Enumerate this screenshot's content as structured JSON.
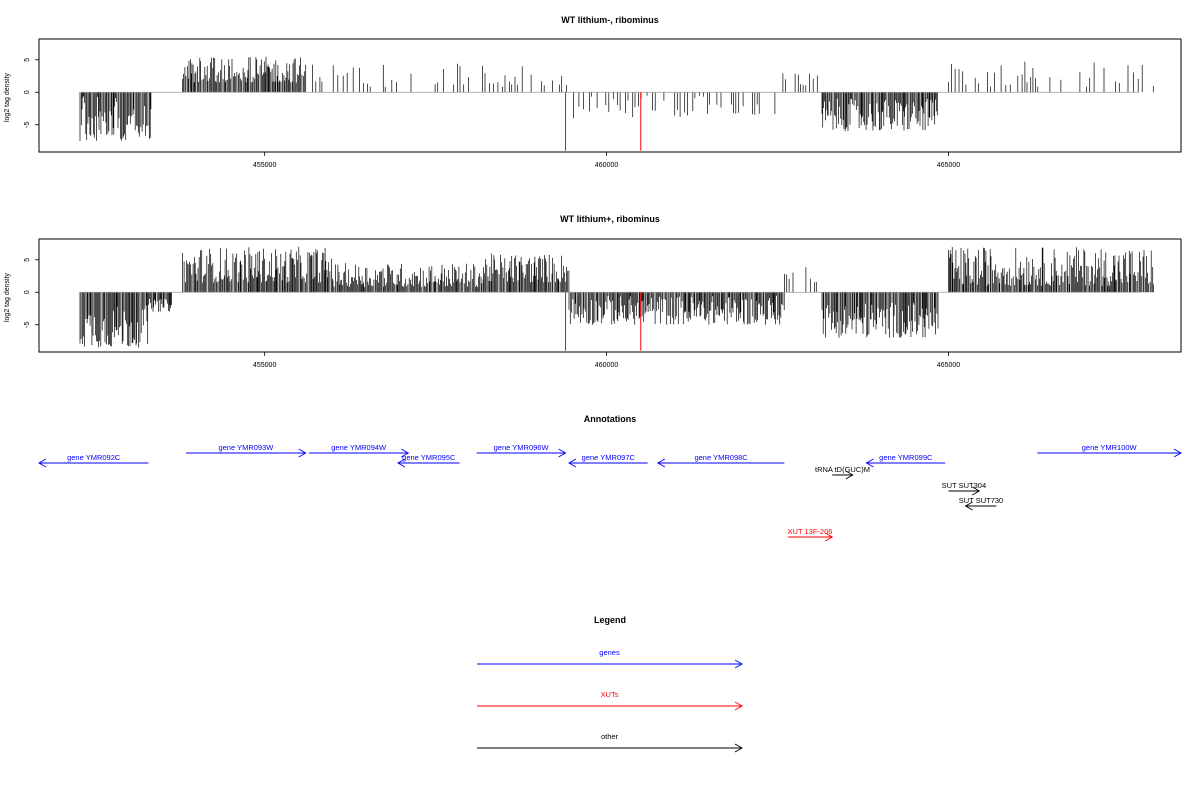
{
  "colors": {
    "gene": "#0000ff",
    "xut": "#ff0000",
    "other": "#000000",
    "frame": "#000000",
    "baseline": "#999999",
    "highlight": "#ff0000"
  },
  "chart_data": [
    {
      "type": "bar",
      "title": "WT lithium-, ribominus",
      "ylabel": "log2 tag density",
      "xlim": [
        451700,
        468400
      ],
      "ylim": [
        -9.2,
        8.2
      ],
      "xticks": [
        455000,
        460000,
        465000
      ],
      "yticks": [
        5,
        0,
        -5
      ],
      "grid": false,
      "series": [
        {
          "name": "",
          "values": [
            {
              "x_from": 452300,
              "x_to": 453350,
              "min": -7.5,
              "max": -0.3,
              "sign": -1
            },
            {
              "x_from": 453800,
              "x_to": 455600,
              "min": 1.5,
              "max": 5.5,
              "sign": 1
            },
            {
              "x_from": 455700,
              "x_to": 459450,
              "min": 0.8,
              "max": 4.5,
              "sign": 1,
              "sparse": true
            },
            {
              "x_from": 459450,
              "x_to": 462500,
              "min": -4.0,
              "max": -0.5,
              "sign": -1,
              "sparse": true
            },
            {
              "x_from": 462500,
              "x_to": 463100,
              "min": 0.8,
              "max": 3.0,
              "sign": 1,
              "sparse": true
            },
            {
              "x_from": 463150,
              "x_to": 464850,
              "min": -6.0,
              "max": -1.0,
              "sign": -1
            },
            {
              "x_from": 465000,
              "x_to": 468000,
              "min": 0.8,
              "max": 5.0,
              "sign": 1,
              "sparse": true
            }
          ]
        }
      ],
      "highlights": [
        {
          "x": 459400,
          "value": -9.0
        },
        {
          "x": 460500,
          "value": -9.0
        }
      ]
    },
    {
      "type": "bar",
      "title": "WT lithium+, ribominus",
      "ylabel": "log2 tag density",
      "xlim": [
        451700,
        468400
      ],
      "ylim": [
        -9.2,
        8.2
      ],
      "xticks": [
        455000,
        460000,
        465000
      ],
      "yticks": [
        5,
        0,
        -5
      ],
      "grid": false,
      "series": [
        {
          "name": "",
          "values": [
            {
              "x_from": 452300,
              "x_to": 453300,
              "min": -8.5,
              "max": -2.0,
              "sign": -1
            },
            {
              "x_from": 453300,
              "x_to": 453650,
              "min": -3.0,
              "max": -1.0,
              "sign": -1
            },
            {
              "x_from": 453800,
              "x_to": 456000,
              "min": 1.5,
              "max": 7.0,
              "sign": 1
            },
            {
              "x_from": 456000,
              "x_to": 458200,
              "min": 0.8,
              "max": 4.5,
              "sign": 1
            },
            {
              "x_from": 458200,
              "x_to": 459450,
              "min": 1.5,
              "max": 6.0,
              "sign": 1
            },
            {
              "x_from": 459450,
              "x_to": 462600,
              "min": -5.0,
              "max": -0.5,
              "sign": -1
            },
            {
              "x_from": 462600,
              "x_to": 463100,
              "min": 0.8,
              "max": 4.0,
              "sign": 1,
              "sparse": true
            },
            {
              "x_from": 463150,
              "x_to": 464850,
              "min": -7.0,
              "max": -1.5,
              "sign": -1
            },
            {
              "x_from": 465000,
              "x_to": 468000,
              "min": 1.0,
              "max": 7.0,
              "sign": 1
            }
          ]
        }
      ],
      "highlights": [
        {
          "x": 459400,
          "value": -9.0
        },
        {
          "x": 460500,
          "value": -9.0
        }
      ]
    }
  ],
  "annotations": {
    "title": "Annotations",
    "features": [
      {
        "label": "gene YMR092C",
        "type": "gene",
        "strand": "-",
        "start": 451700,
        "end": 453300,
        "row": 1
      },
      {
        "label": "gene YMR093W",
        "type": "gene",
        "strand": "+",
        "start": 453850,
        "end": 455600,
        "row": 0
      },
      {
        "label": "gene YMR094W",
        "type": "gene",
        "strand": "+",
        "start": 455650,
        "end": 457100,
        "row": 0
      },
      {
        "label": "gene YMR095C",
        "type": "gene",
        "strand": "-",
        "start": 456950,
        "end": 457850,
        "row": 1
      },
      {
        "label": "gene YMR096W",
        "type": "gene",
        "strand": "+",
        "start": 458100,
        "end": 459400,
        "row": 0
      },
      {
        "label": "gene YMR097C",
        "type": "gene",
        "strand": "-",
        "start": 459450,
        "end": 460600,
        "row": 1
      },
      {
        "label": "gene YMR098C",
        "type": "gene",
        "strand": "-",
        "start": 460750,
        "end": 462600,
        "row": 1
      },
      {
        "label": "tRNA tD(GUC)M",
        "type": "other",
        "strand": "+",
        "start": 463300,
        "end": 463600,
        "row": 2
      },
      {
        "label": "gene YMR099C",
        "type": "gene",
        "strand": "-",
        "start": 463800,
        "end": 464950,
        "row": 1
      },
      {
        "label": "gene YMR100W",
        "type": "gene",
        "strand": "+",
        "start": 466300,
        "end": 468400,
        "row": 0
      },
      {
        "label": "SUT SUT304",
        "type": "other",
        "strand": "+",
        "start": 465000,
        "end": 465450,
        "row": 3
      },
      {
        "label": "SUT SUT730",
        "type": "other",
        "strand": "-",
        "start": 465250,
        "end": 465700,
        "row": 4
      },
      {
        "label": "XUT 13F-206",
        "type": "xut",
        "strand": "+",
        "start": 462650,
        "end": 463300,
        "row": 5
      }
    ]
  },
  "legend": {
    "title": "Legend",
    "items": [
      {
        "label": "genes",
        "type": "gene"
      },
      {
        "label": "XUTs",
        "type": "xut"
      },
      {
        "label": "other",
        "type": "other"
      }
    ]
  }
}
